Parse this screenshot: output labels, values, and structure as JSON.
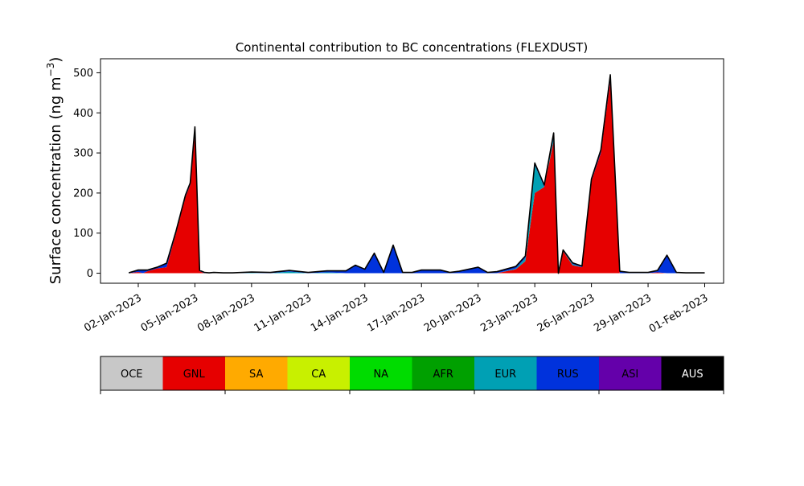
{
  "chart_data": {
    "type": "area",
    "stacked": true,
    "title": "Continental contribution to BC concentrations (FLEXDUST)",
    "ylabel_main": "Surface concentration (ng m",
    "ylabel_sup": "−3",
    "ylabel_close": ")",
    "xlabel": "",
    "ylim": [
      -25,
      535
    ],
    "yticks": [
      0,
      100,
      200,
      300,
      400,
      500
    ],
    "xlim": [
      "2022-12-31T00:00",
      "2023-02-02T00:00"
    ],
    "xticks": [
      "2023-01-02",
      "2023-01-05",
      "2023-01-08",
      "2023-01-11",
      "2023-01-14",
      "2023-01-17",
      "2023-01-20",
      "2023-01-23",
      "2023-01-26",
      "2023-01-29",
      "2023-02-01"
    ],
    "xtick_labels": [
      "02-Jan-2023",
      "05-Jan-2023",
      "08-Jan-2023",
      "11-Jan-2023",
      "14-Jan-2023",
      "17-Jan-2023",
      "20-Jan-2023",
      "23-Jan-2023",
      "26-Jan-2023",
      "29-Jan-2023",
      "01-Feb-2023"
    ],
    "grid": false,
    "legend_position": "bottom",
    "x": [
      "2023-01-01T12:00",
      "2023-01-02T00:00",
      "2023-01-02T06:00",
      "2023-01-02T12:00",
      "2023-01-03T00:00",
      "2023-01-03T12:00",
      "2023-01-04T00:00",
      "2023-01-04T12:00",
      "2023-01-04T18:00",
      "2023-01-05T00:00",
      "2023-01-05T06:00",
      "2023-01-05T12:00",
      "2023-01-05T18:00",
      "2023-01-06T00:00",
      "2023-01-06T12:00",
      "2023-01-07T00:00",
      "2023-01-08T00:00",
      "2023-01-09T00:00",
      "2023-01-10T00:00",
      "2023-01-11T00:00",
      "2023-01-12T00:00",
      "2023-01-13T00:00",
      "2023-01-13T12:00",
      "2023-01-14T00:00",
      "2023-01-14T12:00",
      "2023-01-15T00:00",
      "2023-01-15T12:00",
      "2023-01-16T00:00",
      "2023-01-16T12:00",
      "2023-01-17T00:00",
      "2023-01-18T00:00",
      "2023-01-18T12:00",
      "2023-01-19T00:00",
      "2023-01-20T00:00",
      "2023-01-20T12:00",
      "2023-01-21T00:00",
      "2023-01-22T00:00",
      "2023-01-22T12:00",
      "2023-01-23T00:00",
      "2023-01-23T12:00",
      "2023-01-24T00:00",
      "2023-01-24T06:00",
      "2023-01-24T12:00",
      "2023-01-25T00:00",
      "2023-01-25T12:00",
      "2023-01-26T00:00",
      "2023-01-26T12:00",
      "2023-01-27T00:00",
      "2023-01-27T12:00",
      "2023-01-28T00:00",
      "2023-01-28T12:00",
      "2023-01-29T00:00",
      "2023-01-29T12:00",
      "2023-01-30T00:00",
      "2023-01-30T12:00",
      "2023-01-31T00:00",
      "2023-01-31T12:00",
      "2023-02-01T00:00"
    ],
    "series": [
      {
        "name": "OCE",
        "color": "#c8c8c8",
        "values": [
          0,
          0,
          0,
          0,
          0,
          0,
          0,
          0,
          0,
          0,
          0,
          0,
          0,
          0,
          0,
          0,
          0,
          0,
          0,
          0,
          0,
          0,
          0,
          0,
          0,
          0,
          0,
          0,
          0,
          0,
          0,
          0,
          0,
          0,
          0,
          0,
          0,
          0,
          0,
          0,
          0,
          0,
          0,
          0,
          0,
          0,
          0,
          0,
          0,
          0,
          0,
          0,
          0,
          0,
          0,
          0,
          0,
          0
        ]
      },
      {
        "name": "GNL",
        "color": "#e60000",
        "values": [
          0,
          3,
          0,
          5,
          12,
          15,
          100,
          190,
          220,
          350,
          5,
          0,
          0,
          0,
          0,
          0,
          0,
          0,
          0,
          0,
          0,
          0,
          0,
          0,
          0,
          0,
          0,
          0,
          0,
          0,
          0,
          0,
          0,
          0,
          0,
          0,
          10,
          30,
          200,
          215,
          330,
          0,
          55,
          20,
          15,
          230,
          300,
          480,
          0,
          0,
          0,
          0,
          2,
          0,
          0,
          0,
          0,
          0
        ]
      },
      {
        "name": "SA",
        "color": "#ffaa00",
        "values": [
          0,
          0,
          0,
          0,
          0,
          0,
          0,
          0,
          0,
          0,
          0,
          0,
          0,
          0,
          0,
          0,
          0,
          0,
          0,
          0,
          0,
          0,
          0,
          0,
          0,
          0,
          0,
          0,
          0,
          0,
          0,
          0,
          0,
          0,
          0,
          0,
          0,
          0,
          0,
          0,
          0,
          0,
          0,
          0,
          0,
          0,
          0,
          0,
          0,
          0,
          0,
          0,
          0,
          0,
          0,
          0,
          0,
          0
        ]
      },
      {
        "name": "CA",
        "color": "#c8f000",
        "values": [
          0,
          0,
          0,
          0,
          0,
          0,
          0,
          0,
          0,
          0,
          0,
          0,
          0,
          0,
          0,
          0,
          0,
          0,
          0,
          0,
          0,
          0,
          0,
          0,
          0,
          0,
          0,
          0,
          0,
          0,
          0,
          0,
          0,
          0,
          0,
          0,
          0,
          0,
          0,
          0,
          0,
          0,
          0,
          0,
          0,
          0,
          0,
          0,
          0,
          0,
          0,
          0,
          0,
          0,
          0,
          0,
          0,
          0
        ]
      },
      {
        "name": "NA",
        "color": "#00dc00",
        "values": [
          0,
          0,
          0,
          0,
          0,
          0,
          0,
          0,
          0,
          0,
          0,
          0,
          0,
          0,
          0,
          0,
          0,
          0,
          0,
          0,
          0,
          0,
          0,
          0,
          0,
          0,
          0,
          0,
          0,
          0,
          0,
          0,
          0,
          0,
          0,
          0,
          0,
          0,
          0,
          0,
          0,
          0,
          0,
          0,
          0,
          0,
          0,
          0,
          0,
          0,
          0,
          0,
          0,
          0,
          0,
          0,
          0,
          0
        ]
      },
      {
        "name": "AFR",
        "color": "#00a000",
        "values": [
          0,
          0,
          0,
          0,
          0,
          0,
          0,
          0,
          0,
          0,
          0,
          0,
          0,
          0,
          0,
          0,
          0,
          0,
          0,
          0,
          0,
          0,
          0,
          0,
          0,
          0,
          0,
          0,
          0,
          0,
          0,
          0,
          0,
          0,
          0,
          0,
          0,
          0,
          0,
          0,
          0,
          0,
          0,
          0,
          0,
          0,
          0,
          0,
          0,
          0,
          0,
          0,
          0,
          0,
          0,
          0,
          0,
          0
        ]
      },
      {
        "name": "EUR",
        "color": "#00a0b4",
        "values": [
          0,
          0,
          0,
          0,
          0,
          0,
          0,
          0,
          0,
          0,
          0,
          0,
          0,
          0,
          0,
          0,
          1,
          0,
          4,
          0,
          2,
          0,
          0,
          0,
          0,
          0,
          0,
          0,
          0,
          0,
          0,
          0,
          0,
          0,
          0,
          0,
          2,
          8,
          70,
          0,
          10,
          0,
          0,
          3,
          0,
          0,
          0,
          0,
          0,
          0,
          0,
          0,
          0,
          0,
          0,
          0,
          0,
          0
        ]
      },
      {
        "name": "RUS",
        "color": "#0032dc",
        "values": [
          1,
          5,
          8,
          3,
          3,
          10,
          5,
          5,
          5,
          15,
          2,
          2,
          1,
          2,
          1,
          1,
          2,
          2,
          3,
          2,
          4,
          6,
          20,
          10,
          50,
          2,
          70,
          2,
          2,
          8,
          8,
          2,
          5,
          15,
          2,
          4,
          5,
          5,
          5,
          5,
          10,
          0,
          3,
          3,
          3,
          5,
          8,
          15,
          5,
          2,
          2,
          2,
          5,
          45,
          2,
          1,
          1,
          1
        ]
      },
      {
        "name": "ASI",
        "color": "#6400aa",
        "values": [
          0,
          0,
          0,
          0,
          0,
          0,
          0,
          0,
          0,
          0,
          0,
          0,
          0,
          0,
          0,
          0,
          0,
          0,
          0,
          0,
          0,
          0,
          0,
          0,
          0,
          0,
          0,
          0,
          0,
          0,
          0,
          0,
          0,
          0,
          0,
          0,
          0,
          0,
          0,
          0,
          0,
          0,
          0,
          0,
          0,
          0,
          0,
          0,
          0,
          0,
          0,
          0,
          0,
          0,
          0,
          0,
          0,
          0
        ]
      },
      {
        "name": "AUS",
        "color": "#000000",
        "values": [
          0,
          0,
          0,
          0,
          0,
          0,
          0,
          0,
          0,
          0,
          0,
          0,
          0,
          0,
          0,
          0,
          0,
          0,
          0,
          0,
          0,
          0,
          0,
          0,
          0,
          0,
          0,
          0,
          0,
          0,
          0,
          0,
          0,
          0,
          0,
          0,
          0,
          0,
          0,
          0,
          0,
          0,
          0,
          0,
          0,
          0,
          0,
          0,
          0,
          0,
          0,
          0,
          0,
          0,
          0,
          0,
          0,
          0
        ]
      }
    ]
  }
}
